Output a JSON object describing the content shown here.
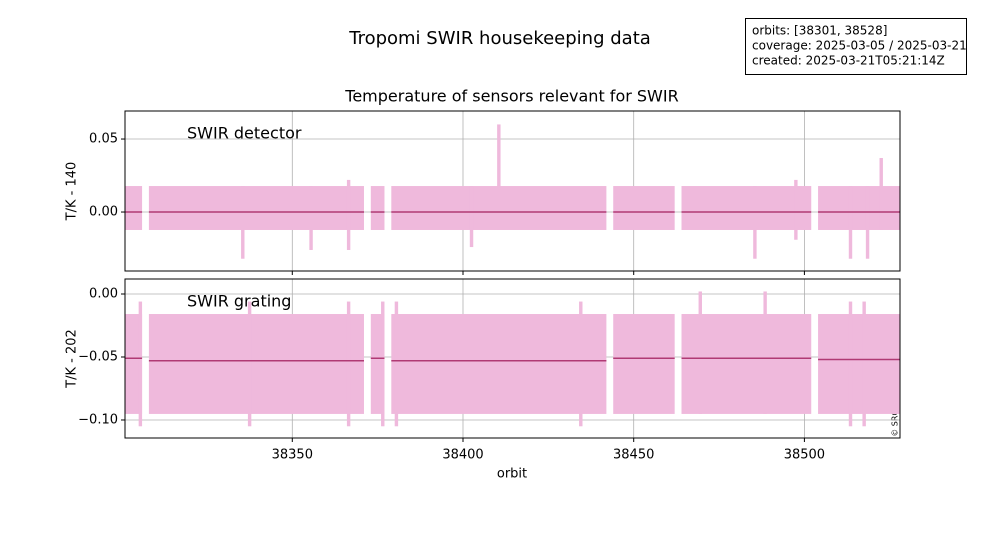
{
  "title": "Tropomi SWIR housekeeping data",
  "info": [
    "orbits: [38301, 38528]",
    "coverage: 2025-03-05 / 2025-03-21",
    "created: 2025-03-21T05:21:14Z"
  ],
  "chart_data": {
    "type": "range-step",
    "title": "Temperature of sensors relevant for SWIR",
    "xlabel": "orbit",
    "credit": "© SRON",
    "xlim": [
      38301,
      38528
    ],
    "xticks": [
      38350,
      38400,
      38450,
      38500
    ],
    "grid": true,
    "range_color": "#efb9dc",
    "median_color": "#b03a74",
    "panels": [
      {
        "label": "SWIR detector",
        "ylabel": "T/K - 140",
        "ylim": [
          -0.0404,
          0.0692
        ],
        "yticks": [
          0.05,
          {
            "value": 0,
            "label": "0.00"
          }
        ],
        "x_start": [
          38301,
          38308,
          38373,
          38379,
          38444,
          38464,
          38504
        ],
        "x_end": [
          38306,
          38371,
          38377,
          38442,
          38462,
          38502,
          38528
        ],
        "low": [
          -0.0123,
          -0.0123,
          -0.0123,
          -0.0123,
          -0.0123,
          -0.0123,
          -0.0123
        ],
        "high": [
          0.0178,
          0.0178,
          0.0178,
          0.0178,
          0.0178,
          0.0178,
          0.0178
        ],
        "median": [
          0,
          0,
          0,
          0,
          0,
          0,
          0
        ],
        "spike_x": [
          38335,
          38355,
          38366,
          38402,
          38410,
          38485,
          38497,
          38513,
          38518,
          38522
        ],
        "spike_low": [
          -0.032,
          -0.026,
          -0.026,
          -0.024,
          -0.0123,
          -0.032,
          -0.019,
          -0.032,
          -0.032,
          -0.0123
        ],
        "spike_high": [
          0.0178,
          0.0178,
          0.022,
          0.0178,
          0.06,
          0.0178,
          0.022,
          0.0178,
          0.0178,
          0.037
        ]
      },
      {
        "label": "SWIR grating",
        "ylabel": "T/K - 202",
        "ylim": [
          -0.1143,
          0.0119
        ],
        "yticks": [
          {
            "value": 0,
            "label": "0.00"
          },
          {
            "value": -0.05,
            "label": "−0.05"
          },
          {
            "value": -0.1,
            "label": "−0.10"
          }
        ],
        "x_start": [
          38301,
          38308,
          38373,
          38379,
          38444,
          38464,
          38504
        ],
        "x_end": [
          38306,
          38371,
          38377,
          38442,
          38462,
          38502,
          38528
        ],
        "low": [
          -0.0952,
          -0.0952,
          -0.0952,
          -0.0952,
          -0.0952,
          -0.0952,
          -0.0952
        ],
        "high": [
          -0.0159,
          -0.0159,
          -0.0159,
          -0.0159,
          -0.0159,
          -0.0159,
          -0.0159
        ],
        "median": [
          -0.051,
          -0.053,
          -0.051,
          -0.053,
          -0.051,
          -0.051,
          -0.052
        ],
        "spike_x": [
          38305,
          38337,
          38366,
          38376,
          38380,
          38434,
          38469,
          38488,
          38513,
          38517
        ],
        "spike_low": [
          -0.105,
          -0.105,
          -0.105,
          -0.105,
          -0.105,
          -0.105,
          -0.0952,
          -0.0952,
          -0.105,
          -0.105
        ],
        "spike_high": [
          -0.006,
          -0.006,
          -0.006,
          -0.006,
          -0.006,
          -0.006,
          0.002,
          0.002,
          -0.006,
          -0.006
        ]
      }
    ]
  }
}
